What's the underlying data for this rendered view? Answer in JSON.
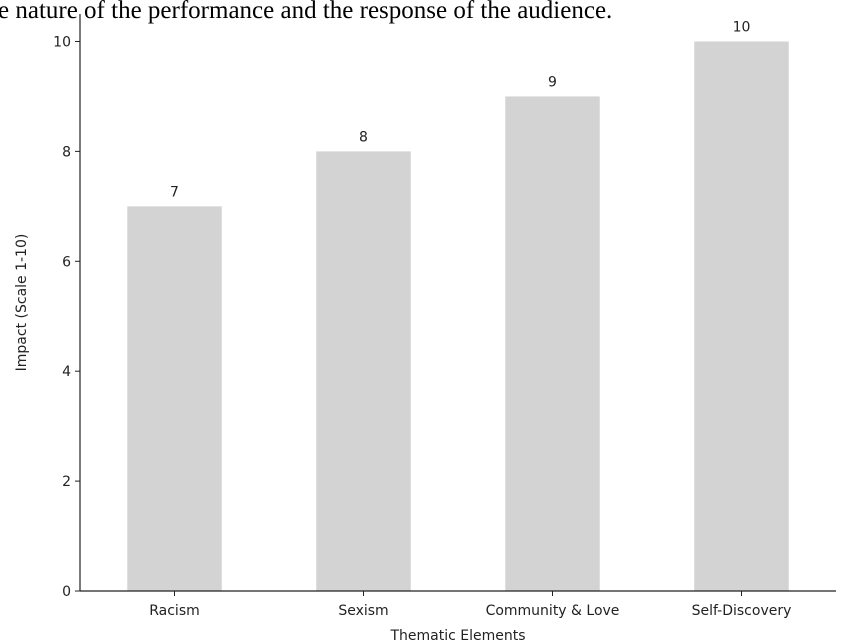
{
  "caption": "e nature of the performance and the response of the audience.",
  "chart_data": {
    "type": "bar",
    "categories": [
      "Racism",
      "Sexism",
      "Community & Love",
      "Self-Discovery"
    ],
    "values": [
      7,
      8,
      9,
      10
    ],
    "value_labels": [
      "7",
      "8",
      "9",
      "10"
    ],
    "xlabel": "Thematic Elements",
    "ylabel": "Impact (Scale 1-10)",
    "ylim": [
      0,
      10.5
    ],
    "yticks": [
      0,
      2,
      4,
      6,
      8,
      10
    ],
    "ytick_labels": [
      "0",
      "2",
      "4",
      "6",
      "8",
      "10"
    ],
    "bar_color": "#d3d3d3",
    "grid": false,
    "legend": false
  }
}
